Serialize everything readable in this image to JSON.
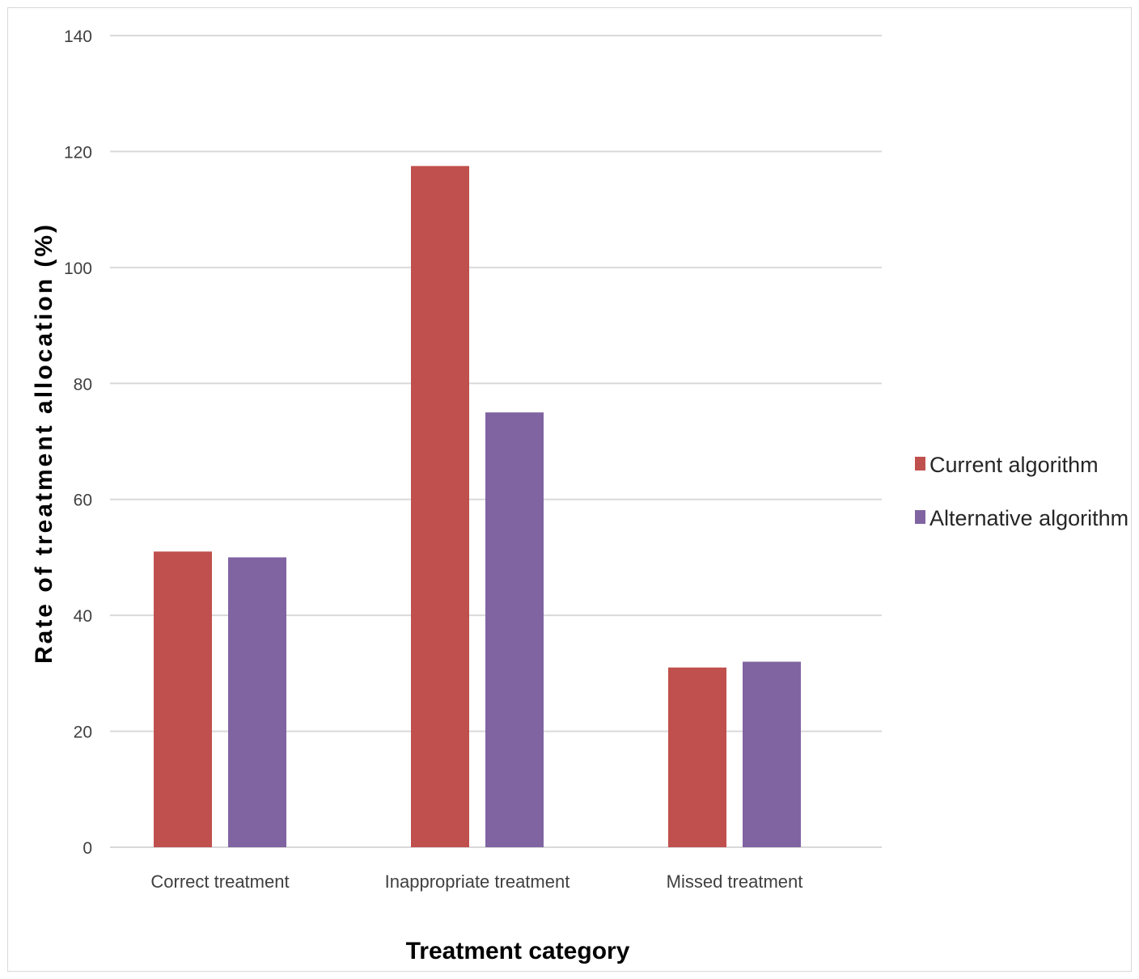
{
  "chart_data": {
    "type": "bar",
    "title": "",
    "xlabel": "Treatment category",
    "ylabel": "Rate of treatment allocation (%)",
    "categories": [
      "Correct treatment",
      "Inappropriate treatment",
      "Missed treatment"
    ],
    "series": [
      {
        "name": "Current algorithm",
        "color": "#c0504d",
        "values": [
          51,
          117.5,
          31
        ]
      },
      {
        "name": "Alternative algorithm",
        "color": "#8064a2",
        "values": [
          50,
          75,
          32
        ]
      }
    ],
    "ylim": [
      0,
      140
    ],
    "yticks": [
      "0",
      "20",
      "40",
      "60",
      "80",
      "100",
      "120",
      "140"
    ],
    "grid": true,
    "legend_position": "right",
    "gridline_color": "#d9d9d9"
  }
}
